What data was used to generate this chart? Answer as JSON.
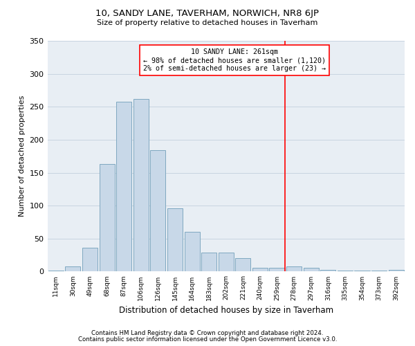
{
  "title_line1": "10, SANDY LANE, TAVERHAM, NORWICH, NR8 6JP",
  "title_line2": "Size of property relative to detached houses in Taverham",
  "xlabel": "Distribution of detached houses by size in Taverham",
  "ylabel": "Number of detached properties",
  "categories": [
    "11sqm",
    "30sqm",
    "49sqm",
    "68sqm",
    "87sqm",
    "106sqm",
    "126sqm",
    "145sqm",
    "164sqm",
    "183sqm",
    "202sqm",
    "221sqm",
    "240sqm",
    "259sqm",
    "278sqm",
    "297sqm",
    "316sqm",
    "335sqm",
    "354sqm",
    "373sqm",
    "392sqm"
  ],
  "values": [
    2,
    8,
    36,
    163,
    258,
    262,
    184,
    96,
    60,
    29,
    29,
    20,
    6,
    6,
    8,
    6,
    3,
    2,
    2,
    1,
    3
  ],
  "bar_color": "#c8d8e8",
  "bar_edgecolor": "#7fa8c0",
  "bar_linewidth": 0.7,
  "property_line_color": "red",
  "annotation_title": "10 SANDY LANE: 261sqm",
  "annotation_line1": "← 98% of detached houses are smaller (1,120)",
  "annotation_line2": "2% of semi-detached houses are larger (23) →",
  "annotation_box_facecolor": "white",
  "annotation_box_edgecolor": "red",
  "grid_color": "#c8d4e0",
  "background_color": "#e8eef4",
  "ylim": [
    0,
    350
  ],
  "yticks": [
    0,
    50,
    100,
    150,
    200,
    250,
    300,
    350
  ],
  "footnote1": "Contains HM Land Registry data © Crown copyright and database right 2024.",
  "footnote2": "Contains public sector information licensed under the Open Government Licence v3.0."
}
